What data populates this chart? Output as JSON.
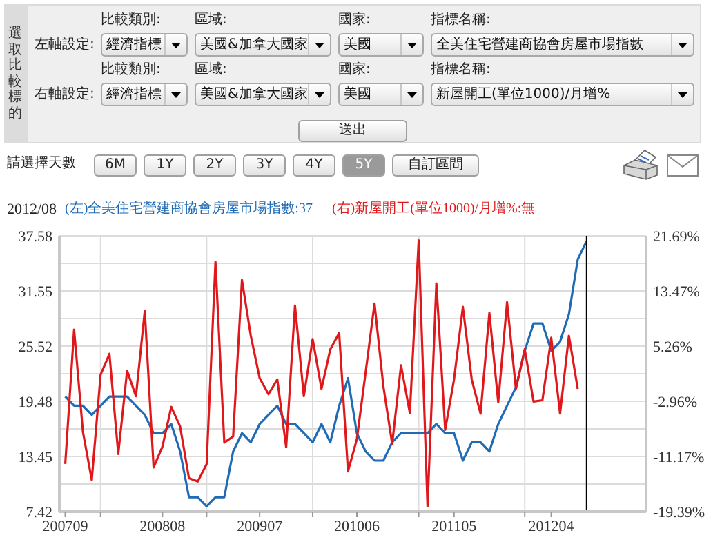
{
  "chart_data": {
    "type": "line",
    "annotations": [
      "選取比較標的",
      "左軸設定:",
      "比較類別:",
      "區域:",
      "國家:",
      "指標名稱:",
      "經濟指標",
      "美國&加拿大國家",
      "美國",
      "全美住宅營建商協會房屋市場指數",
      "右軸設定:",
      "比較類別:",
      "區域:",
      "國家:",
      "指標名稱:",
      "經濟指標",
      "美國&加拿大國家",
      "美國",
      "新屋開工(單位1000)/月增%",
      "送出",
      "請選擇天數",
      "6M",
      "1Y",
      "2Y",
      "3Y",
      "4Y",
      "5Y",
      "自訂區間",
      "2012/08"
    ],
    "x": [
      "2007-09",
      "2007-10",
      "2007-11",
      "2007-12",
      "2008-01",
      "2008-02",
      "2008-03",
      "2008-04",
      "2008-05",
      "2008-06",
      "2008-07",
      "2008-08",
      "2008-09",
      "2008-10",
      "2008-11",
      "2008-12",
      "2009-01",
      "2009-02",
      "2009-03",
      "2009-04",
      "2009-05",
      "2009-06",
      "2009-07",
      "2009-08",
      "2009-09",
      "2009-10",
      "2009-11",
      "2009-12",
      "2010-01",
      "2010-02",
      "2010-03",
      "2010-04",
      "2010-05",
      "2010-06",
      "2010-07",
      "2010-08",
      "2010-09",
      "2010-10",
      "2010-11",
      "2010-12",
      "2011-01",
      "2011-02",
      "2011-03",
      "2011-04",
      "2011-05",
      "2011-06",
      "2011-07",
      "2011-08",
      "2011-09",
      "2011-10",
      "2011-11",
      "2011-12",
      "2012-01",
      "2012-02",
      "2012-03",
      "2012-04",
      "2012-05",
      "2012-06",
      "2012-07",
      "2012-08"
    ],
    "series": [
      {
        "name": "(左)全美住宅營建商協會房屋市場指數:37",
        "color": "#1f6bb5",
        "values": [
          20,
          19,
          19,
          18,
          19,
          20,
          20,
          20,
          19,
          18,
          16,
          16,
          17,
          14,
          9,
          9,
          8,
          9,
          9,
          14,
          16,
          15,
          17,
          18,
          19,
          17,
          17,
          16,
          15,
          17,
          15,
          19,
          22,
          16,
          14,
          13,
          13,
          15,
          16,
          16,
          16,
          16,
          17,
          16,
          16,
          13,
          15,
          15,
          14,
          17,
          19,
          21,
          25,
          28,
          28,
          25,
          26,
          29,
          35,
          37
        ]
      },
      {
        "name": "(右)新屋開工(單位1000)/月增%:無",
        "color": "#e0181b",
        "axis": "y2",
        "values": [
          -12.3,
          7.7,
          -7.5,
          -14.7,
          1.0,
          4.1,
          -10.8,
          1.6,
          -2.2,
          10.5,
          -12.8,
          -9.7,
          -3.8,
          -6.7,
          -14.4,
          -14.9,
          -12.3,
          17.8,
          -9.1,
          -8.2,
          15.1,
          6.8,
          0.5,
          -1.9,
          0.3,
          -9.8,
          11.3,
          -2.2,
          6.3,
          -1.1,
          4.8,
          7.2,
          -13.4,
          -8.6,
          1.4,
          11.6,
          -0.7,
          -9.3,
          2.4,
          -4.7,
          21.0,
          -18.6,
          14.6,
          -7.2,
          0.3,
          11.1,
          0.3,
          -4.8,
          10.2,
          -3.1,
          11.8,
          -1.1,
          4.8,
          -3.0,
          -2.8,
          6.5,
          -4.8,
          6.8,
          -1.1,
          null
        ]
      }
    ],
    "xlim": [
      "2007-08-11",
      "2013-02-23"
    ],
    "xticks": [
      {
        "value": "2007-09",
        "label": "200709"
      },
      {
        "value": "2008-01",
        "label": null
      },
      {
        "value": "2008-08",
        "label": "200808"
      },
      {
        "value": "2009-01",
        "label": null
      },
      {
        "value": "2009-07",
        "label": "200907"
      },
      {
        "value": "2010-01",
        "label": null
      },
      {
        "value": "2010-06",
        "label": "201006"
      },
      {
        "value": "2011-01",
        "label": null
      },
      {
        "value": "2011-05",
        "label": "201105"
      },
      {
        "value": "2012-01",
        "label": null
      },
      {
        "value": "2012-04",
        "label": "201204"
      }
    ],
    "ylim": [
      7.42,
      37.58
    ],
    "yticks": [
      7.42,
      {
        "value": 10.44,
        "label": null
      },
      13.45,
      {
        "value": 16.47,
        "label": null
      },
      19.48,
      {
        "value": 22.5,
        "label": null
      },
      25.52,
      {
        "value": 28.53,
        "label": null
      },
      31.55,
      {
        "value": 34.56,
        "label": null
      },
      37.58
    ],
    "y2lim": [
      -19.39,
      21.69
    ],
    "y2ticks": [
      {
        "value": -19.39,
        "label": "-19.39%"
      },
      {
        "value": -11.17,
        "label": "-11.17%"
      },
      {
        "value": -2.96,
        "label": "-2.96%"
      },
      {
        "value": 5.26,
        "label": "5.26%"
      },
      {
        "value": 13.47,
        "label": "13.47%"
      },
      {
        "value": 21.69,
        "label": "21.69%"
      }
    ],
    "ref_lines": [
      {
        "axis": "x",
        "value": "2012-08",
        "color": "#000000"
      }
    ],
    "grid": true,
    "legend": "top"
  }
}
